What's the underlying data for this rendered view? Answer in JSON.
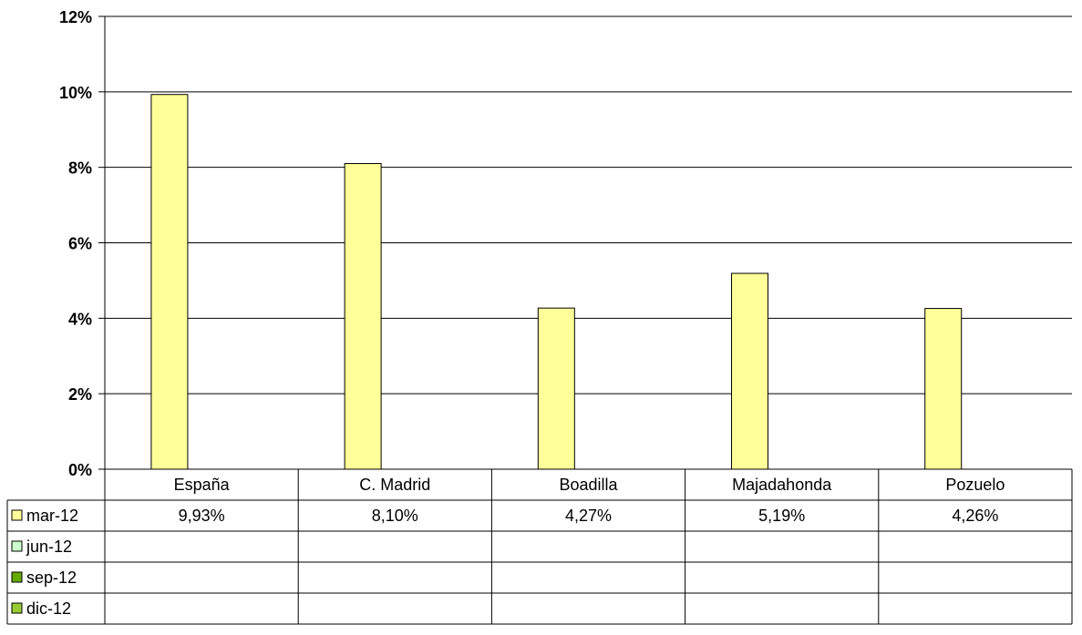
{
  "chart_data": {
    "type": "bar",
    "categories": [
      "España",
      "C. Madrid",
      "Boadilla",
      "Majadahonda",
      "Pozuelo"
    ],
    "series": [
      {
        "name": "mar-12",
        "color": "#FFFF99",
        "values": [
          9.93,
          8.1,
          4.27,
          5.19,
          4.26
        ],
        "labels": [
          "9,93%",
          "8,10%",
          "4,27%",
          "5,19%",
          "4,26%"
        ]
      },
      {
        "name": "jun-12",
        "color": "#CCFFCC",
        "values": [
          null,
          null,
          null,
          null,
          null
        ],
        "labels": [
          "",
          "",
          "",
          "",
          ""
        ]
      },
      {
        "name": "sep-12",
        "color": "#66AA00",
        "values": [
          null,
          null,
          null,
          null,
          null
        ],
        "labels": [
          "",
          "",
          "",
          "",
          ""
        ]
      },
      {
        "name": "dic-12",
        "color": "#99CC33",
        "values": [
          null,
          null,
          null,
          null,
          null
        ],
        "labels": [
          "",
          "",
          "",
          "",
          ""
        ]
      }
    ],
    "yticks": [
      "0%",
      "2%",
      "4%",
      "6%",
      "8%",
      "10%",
      "12%"
    ],
    "ylim": [
      0,
      12
    ],
    "grid": true,
    "legend": "data-table"
  }
}
